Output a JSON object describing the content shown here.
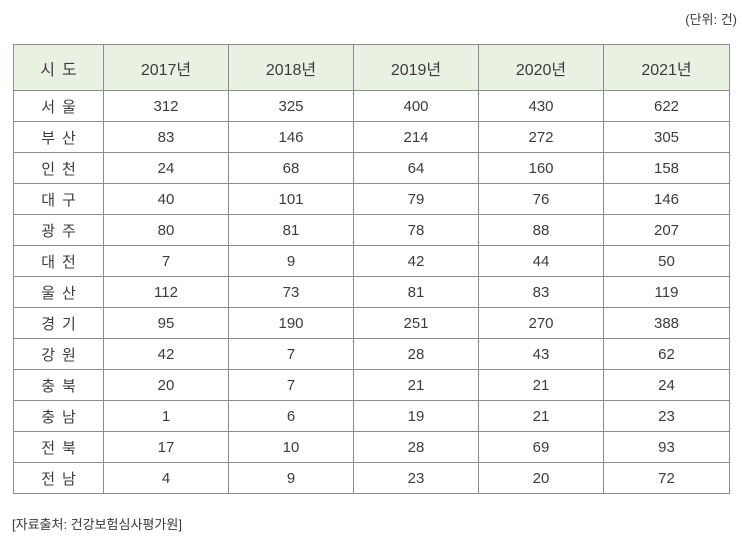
{
  "unit_note": "(단위: 건)",
  "source_note": "[자료출처: 건강보험심사평가원]",
  "colors": {
    "header_bg": "#e9f1e2",
    "inner_border": "#8c8c8c",
    "outer_border": "#6f6f6f",
    "text": "#3c3c3c"
  },
  "table": {
    "columns": [
      "시도",
      "2017년",
      "2018년",
      "2019년",
      "2020년",
      "2021년"
    ],
    "rows": [
      {
        "region": "서울",
        "values": [
          312,
          325,
          400,
          430,
          622
        ]
      },
      {
        "region": "부산",
        "values": [
          83,
          146,
          214,
          272,
          305
        ]
      },
      {
        "region": "인천",
        "values": [
          24,
          68,
          64,
          160,
          158
        ]
      },
      {
        "region": "대구",
        "values": [
          40,
          101,
          79,
          76,
          146
        ]
      },
      {
        "region": "광주",
        "values": [
          80,
          81,
          78,
          88,
          207
        ]
      },
      {
        "region": "대전",
        "values": [
          7,
          9,
          42,
          44,
          50
        ]
      },
      {
        "region": "울산",
        "values": [
          112,
          73,
          81,
          83,
          119
        ]
      },
      {
        "region": "경기",
        "values": [
          95,
          190,
          251,
          270,
          388
        ]
      },
      {
        "region": "강원",
        "values": [
          42,
          7,
          28,
          43,
          62
        ]
      },
      {
        "region": "충북",
        "values": [
          20,
          7,
          21,
          21,
          24
        ]
      },
      {
        "region": "충남",
        "values": [
          1,
          6,
          19,
          21,
          23
        ]
      },
      {
        "region": "전북",
        "values": [
          17,
          10,
          28,
          69,
          93
        ]
      },
      {
        "region": "전남",
        "values": [
          4,
          9,
          23,
          20,
          72
        ]
      }
    ]
  },
  "chart_data": {
    "type": "table",
    "title": "",
    "unit": "건",
    "categories": [
      "2017년",
      "2018년",
      "2019년",
      "2020년",
      "2021년"
    ],
    "series": [
      {
        "name": "서울",
        "values": [
          312,
          325,
          400,
          430,
          622
        ]
      },
      {
        "name": "부산",
        "values": [
          83,
          146,
          214,
          272,
          305
        ]
      },
      {
        "name": "인천",
        "values": [
          24,
          68,
          64,
          160,
          158
        ]
      },
      {
        "name": "대구",
        "values": [
          40,
          101,
          79,
          76,
          146
        ]
      },
      {
        "name": "광주",
        "values": [
          80,
          81,
          78,
          88,
          207
        ]
      },
      {
        "name": "대전",
        "values": [
          7,
          9,
          42,
          44,
          50
        ]
      },
      {
        "name": "울산",
        "values": [
          112,
          73,
          81,
          83,
          119
        ]
      },
      {
        "name": "경기",
        "values": [
          95,
          190,
          251,
          270,
          388
        ]
      },
      {
        "name": "강원",
        "values": [
          42,
          7,
          28,
          43,
          62
        ]
      },
      {
        "name": "충북",
        "values": [
          20,
          7,
          21,
          21,
          24
        ]
      },
      {
        "name": "충남",
        "values": [
          1,
          6,
          19,
          21,
          23
        ]
      },
      {
        "name": "전북",
        "values": [
          17,
          10,
          28,
          69,
          93
        ]
      },
      {
        "name": "전남",
        "values": [
          4,
          9,
          23,
          20,
          72
        ]
      }
    ]
  }
}
